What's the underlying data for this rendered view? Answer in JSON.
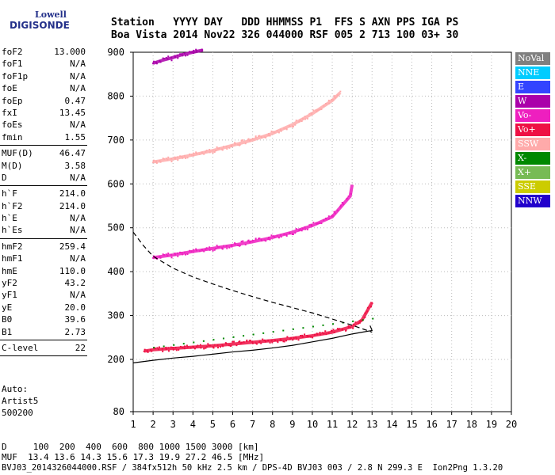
{
  "logo": {
    "line1": "Lowell",
    "line2": "DIGISONDE"
  },
  "header": {
    "line1": "Station   YYYY DAY   DDD HHMMSS P1  FFS S AXN PPS IGA PS",
    "line2": "Boa Vista 2014 Nov22 326 044000 RSF 005 2 713 100 03+ 30"
  },
  "params": [
    {
      "name": "foF2",
      "value": "13.000"
    },
    {
      "name": "foF1",
      "value": "N/A"
    },
    {
      "name": "foF1p",
      "value": "N/A"
    },
    {
      "name": "foE",
      "value": "N/A"
    },
    {
      "name": "foEp",
      "value": "0.47"
    },
    {
      "name": "fxI",
      "value": "13.45"
    },
    {
      "name": "foEs",
      "value": "N/A"
    },
    {
      "name": "fmin",
      "value": "1.55"
    },
    {
      "sep": true
    },
    {
      "name": "MUF(D)",
      "value": "46.47"
    },
    {
      "name": "M(D)",
      "value": "3.58"
    },
    {
      "name": "D",
      "value": "N/A"
    },
    {
      "sep": true
    },
    {
      "name": "h`F",
      "value": "214.0"
    },
    {
      "name": "h`F2",
      "value": "214.0"
    },
    {
      "name": "h`E",
      "value": "N/A"
    },
    {
      "name": "h`Es",
      "value": "N/A"
    },
    {
      "sep": true
    },
    {
      "name": "hmF2",
      "value": "259.4"
    },
    {
      "name": "hmF1",
      "value": "N/A"
    },
    {
      "name": "hmE",
      "value": "110.0"
    },
    {
      "name": "yF2",
      "value": "43.2"
    },
    {
      "name": "yF1",
      "value": "N/A"
    },
    {
      "name": "yE",
      "value": "20.0"
    },
    {
      "name": "B0",
      "value": "39.6"
    },
    {
      "name": "B1",
      "value": "2.73"
    },
    {
      "sep": true
    },
    {
      "name": "C-level",
      "value": "22"
    },
    {
      "sep": true
    }
  ],
  "auto": {
    "line1": "Auto:",
    "line2": "Artist5",
    "line3": "500200"
  },
  "legend": [
    {
      "label": "NoVal",
      "color": "#808080"
    },
    {
      "label": "NNE",
      "color": "#00ccff"
    },
    {
      "label": "E",
      "color": "#3344ff"
    },
    {
      "label": "W",
      "color": "#aa00aa"
    },
    {
      "label": "Vo-",
      "color": "#ee1fbf"
    },
    {
      "label": "Vo+",
      "color": "#ee1144"
    },
    {
      "label": "SSW",
      "color": "#ffaaaa"
    },
    {
      "label": "X-",
      "color": "#008800"
    },
    {
      "label": "X+",
      "color": "#77bb55"
    },
    {
      "label": "SSE",
      "color": "#cccc00"
    },
    {
      "label": "NNW",
      "color": "#2200cc"
    }
  ],
  "footer": {
    "line1": "D     100  200  400  600  800 1000 1500 3000 [km]",
    "line2": "MUF  13.4 13.6 14.3 15.6 17.3 19.9 27.2 46.5 [MHz]",
    "line3": "BVJ03_2014326044000.RSF / 384fx512h 50 kHz 2.5 km / DPS-4D BVJ03 003 / 2.8 N 299.3 E  Ion2Png 1.3.20"
  },
  "chart_data": {
    "type": "scatter",
    "title": "",
    "xlabel": "",
    "ylabel": "",
    "xlim": [
      1,
      20
    ],
    "ylim": [
      80,
      900
    ],
    "x_ticks": [
      1,
      2,
      3,
      4,
      5,
      6,
      7,
      8,
      9,
      10,
      11,
      12,
      13,
      14,
      15,
      16,
      17,
      18,
      19,
      20
    ],
    "y_ticks": [
      80,
      200,
      300,
      400,
      500,
      600,
      700,
      800,
      900
    ],
    "grid": true,
    "series": [
      {
        "name": "Vo+",
        "color": "#ee1144",
        "x": [
          1.55,
          2.0,
          3.0,
          4.0,
          5.0,
          6.0,
          7.0,
          8.0,
          9.0,
          10.0,
          11.0,
          12.0,
          12.5,
          13.0
        ],
        "y": [
          219,
          222,
          225,
          228,
          231,
          235,
          239,
          243,
          248,
          254,
          262,
          275,
          290,
          330
        ]
      },
      {
        "name": "Vo-",
        "color": "#ee1fbf",
        "x": [
          2.0,
          3.0,
          4.0,
          5.0,
          6.0,
          7.0,
          8.0,
          9.0,
          10.0,
          11.0,
          11.9,
          12.0
        ],
        "y": [
          432,
          438,
          446,
          453,
          460,
          468,
          478,
          490,
          505,
          525,
          572,
          598
        ]
      },
      {
        "name": "SSW",
        "color": "#ffaaaa",
        "x": [
          2.0,
          3.0,
          4.0,
          5.0,
          6.0,
          7.0,
          8.0,
          9.0,
          10.0,
          11.0,
          11.4
        ],
        "y": [
          650,
          657,
          666,
          676,
          688,
          700,
          715,
          735,
          760,
          790,
          808
        ]
      },
      {
        "name": "W",
        "color": "#aa00aa",
        "x": [
          2.0,
          2.5,
          3.0,
          3.5,
          4.0,
          4.5
        ],
        "y": [
          875,
          882,
          888,
          895,
          900,
          905
        ]
      }
    ],
    "lines": [
      {
        "name": "dashed",
        "style": "dashed",
        "x": [
          1.0,
          1.5,
          2.0,
          3.0,
          4.0,
          5.0,
          6.0,
          7.0,
          8.0,
          9.0,
          10.0,
          11.0,
          12.0,
          12.5,
          13.0
        ],
        "y": [
          490,
          460,
          435,
          408,
          388,
          372,
          357,
          343,
          330,
          318,
          306,
          292,
          278,
          270,
          262
        ]
      },
      {
        "name": "solid",
        "style": "solid",
        "x": [
          1.0,
          2.0,
          3.0,
          4.0,
          5.0,
          6.0,
          7.0,
          8.0,
          9.0,
          10.0,
          11.0,
          12.0,
          12.5,
          13.0,
          12.9
        ],
        "y": [
          192,
          198,
          203,
          207,
          212,
          217,
          221,
          226,
          232,
          240,
          248,
          258,
          262,
          266,
          277
        ]
      }
    ]
  }
}
